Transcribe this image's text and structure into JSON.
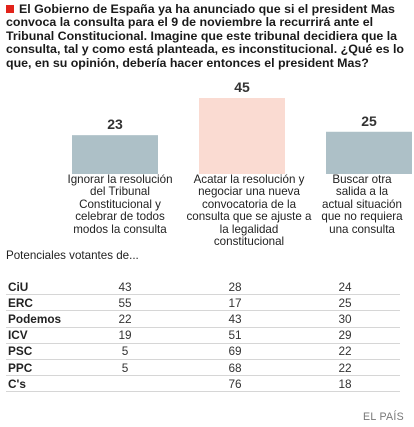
{
  "question": "El Gobierno de España ya ha anunciado que si el president Mas convoca la consulta para el 9 de noviembre la recurrirá ante el Tribunal Constitucional. Imagine que este tribunal decidiera que la consulta, tal y como está planteada, es inconstitucional. ¿Qué es lo que, en su opinión, debería hacer entonces el president Mas?",
  "chart_data": {
    "type": "bar",
    "categories": [
      "Ignorar la resolución del Tribunal Constitucional y celebrar de todos modos la consulta",
      "Acatar la resolución y negociar una nueva convocatoria de la consulta que se ajuste a la legalidad constitucional",
      "Buscar otra salida a la actual situación que no requiera una consulta"
    ],
    "values": [
      23,
      45,
      25
    ],
    "colors": [
      "#adc0c7",
      "#fadbd2",
      "#adc0c7"
    ],
    "ylim": [
      0,
      45
    ]
  },
  "table": {
    "subheader": "Potenciales votantes de...",
    "rows": [
      {
        "party": "CiU",
        "values": [
          "43",
          "28",
          "24"
        ]
      },
      {
        "party": "ERC",
        "values": [
          "55",
          "17",
          "25"
        ]
      },
      {
        "party": "Podemos",
        "values": [
          "22",
          "43",
          "30"
        ]
      },
      {
        "party": "ICV",
        "values": [
          "19",
          "51",
          "29"
        ]
      },
      {
        "party": "PSC",
        "values": [
          "5",
          "69",
          "22"
        ]
      },
      {
        "party": "PPC",
        "values": [
          "5",
          "68",
          "22"
        ]
      },
      {
        "party": "C's",
        "values": [
          "",
          "76",
          "18"
        ]
      }
    ]
  },
  "source": "EL PAÍS"
}
